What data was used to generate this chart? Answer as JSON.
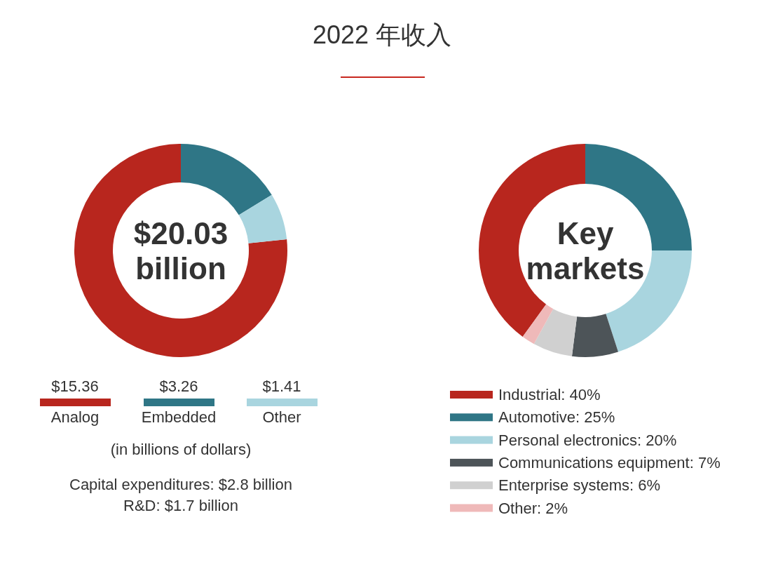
{
  "chart_data": [
    {
      "type": "donut",
      "title": "2022 年收入",
      "categories": [
        "Analog",
        "Embedded",
        "Other"
      ],
      "values": [
        15.36,
        3.26,
        1.41
      ],
      "colors": [
        "#b8261e",
        "#2f7686",
        "#a9d5df"
      ],
      "value_labels": [
        "$15.36",
        "$3.26",
        "$1.41"
      ],
      "legend": "bottom",
      "annotations": [
        "$20.03 billion",
        "(in billions of dollars)",
        "Capital expenditures: $2.8 billion",
        "R&D: $1.7 billion"
      ]
    },
    {
      "type": "donut",
      "categories": [
        "Industrial",
        "Automotive",
        "Personal electronics",
        "Communications equipment",
        "Enterprise systems",
        "Other"
      ],
      "values": [
        40,
        25,
        20,
        7,
        6,
        2
      ],
      "colors": [
        "#b8261e",
        "#2f7686",
        "#a9d5df",
        "#4d5458",
        "#d0d0d0",
        "#efb9b9"
      ],
      "value_labels": [
        "40%",
        "25%",
        "20%",
        "7%",
        "6%",
        "2%"
      ],
      "legend": "bottom",
      "annotations": [
        "Key markets"
      ]
    }
  ]
}
